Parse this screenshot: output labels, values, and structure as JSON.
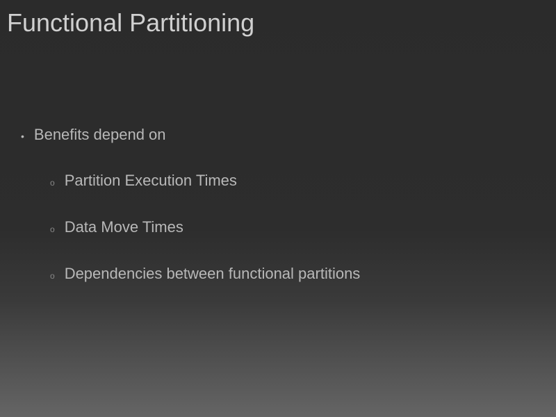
{
  "slide": {
    "title": "Functional Partitioning",
    "title_color": "#d0d0d0",
    "title_fontsize": 36,
    "background_gradient_top": "#2b2b2b",
    "background_gradient_bottom": "#656565",
    "text_color": "#b8b8b8",
    "body_fontsize": 22,
    "main_bullet": {
      "marker": "•",
      "text": "Benefits depend on"
    },
    "sub_bullets": [
      {
        "marker": "o",
        "text": "Partition Execution Times"
      },
      {
        "marker": "o",
        "text": "Data Move Times"
      },
      {
        "marker": "o",
        "text": "Dependencies between functional partitions"
      }
    ]
  }
}
